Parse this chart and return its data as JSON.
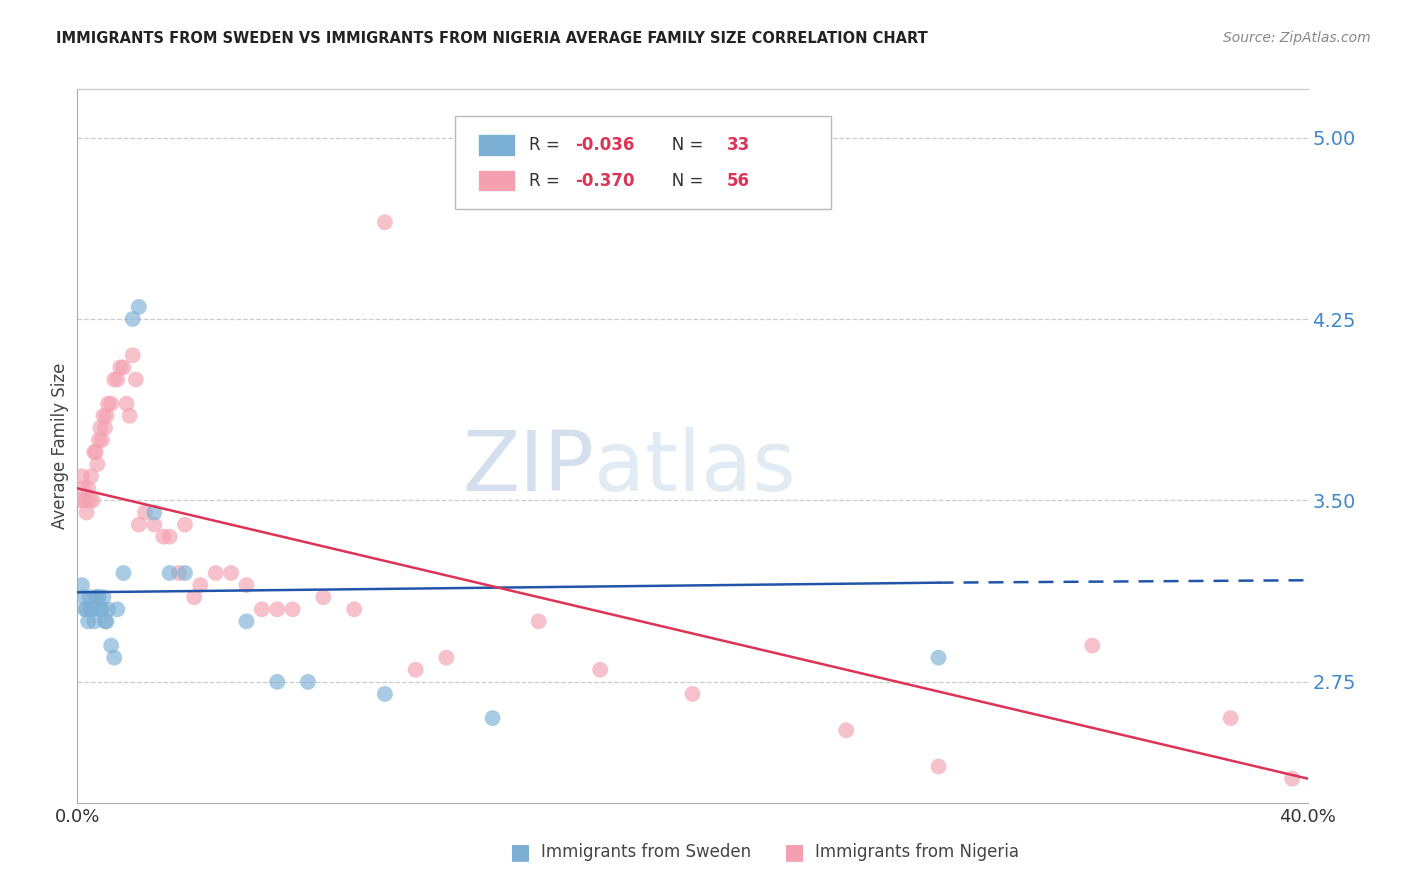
{
  "title": "IMMIGRANTS FROM SWEDEN VS IMMIGRANTS FROM NIGERIA AVERAGE FAMILY SIZE CORRELATION CHART",
  "source": "Source: ZipAtlas.com",
  "ylabel": "Average Family Size",
  "yticks": [
    2.75,
    3.5,
    4.25,
    5.0
  ],
  "xmin": 0.0,
  "xmax": 40.0,
  "ymin": 2.25,
  "ymax": 5.2,
  "watermark_zip": "ZIP",
  "watermark_atlas": "atlas",
  "legend_sweden": "Immigrants from Sweden",
  "legend_nigeria": "Immigrants from Nigeria",
  "sweden_R": "-0.036",
  "sweden_N": "33",
  "nigeria_R": "-0.370",
  "nigeria_N": "56",
  "sweden_color": "#7bafd4",
  "nigeria_color": "#f4a0b0",
  "sweden_line_color": "#2255aa",
  "nigeria_line_color": "#dd3355",
  "background_color": "#ffffff",
  "grid_color": "#cccccc",
  "title_color": "#222222",
  "right_axis_color": "#4488cc",
  "sweden_x": [
    0.15,
    0.2,
    0.25,
    0.3,
    0.35,
    0.4,
    0.45,
    0.5,
    0.55,
    0.6,
    0.65,
    0.7,
    0.75,
    0.8,
    0.85,
    0.9,
    0.95,
    1.0,
    1.1,
    1.2,
    1.3,
    1.5,
    1.8,
    2.0,
    2.5,
    3.0,
    3.5,
    5.5,
    6.5,
    7.5,
    10.0,
    13.5,
    28.0
  ],
  "sweden_y": [
    3.15,
    3.1,
    3.05,
    3.05,
    3.0,
    3.1,
    3.05,
    3.05,
    3.0,
    3.1,
    3.1,
    3.1,
    3.05,
    3.05,
    3.1,
    3.0,
    3.0,
    3.05,
    2.9,
    2.85,
    3.05,
    3.2,
    4.25,
    4.3,
    3.45,
    3.2,
    3.2,
    3.0,
    2.75,
    2.75,
    2.7,
    2.6,
    2.85
  ],
  "nigeria_x": [
    0.1,
    0.15,
    0.2,
    0.25,
    0.3,
    0.35,
    0.4,
    0.45,
    0.5,
    0.55,
    0.6,
    0.65,
    0.7,
    0.75,
    0.8,
    0.85,
    0.9,
    0.95,
    1.0,
    1.1,
    1.2,
    1.3,
    1.4,
    1.5,
    1.6,
    1.7,
    1.8,
    1.9,
    2.0,
    2.2,
    2.5,
    2.8,
    3.0,
    3.3,
    3.5,
    3.8,
    4.0,
    4.5,
    5.0,
    5.5,
    6.0,
    6.5,
    7.0,
    8.0,
    9.0,
    10.0,
    11.0,
    12.0,
    15.0,
    17.0,
    20.0,
    25.0,
    28.0,
    33.0,
    37.5,
    39.5
  ],
  "nigeria_y": [
    3.5,
    3.6,
    3.55,
    3.5,
    3.45,
    3.55,
    3.5,
    3.6,
    3.5,
    3.7,
    3.7,
    3.65,
    3.75,
    3.8,
    3.75,
    3.85,
    3.8,
    3.85,
    3.9,
    3.9,
    4.0,
    4.0,
    4.05,
    4.05,
    3.9,
    3.85,
    4.1,
    4.0,
    3.4,
    3.45,
    3.4,
    3.35,
    3.35,
    3.2,
    3.4,
    3.1,
    3.15,
    3.2,
    3.2,
    3.15,
    3.05,
    3.05,
    3.05,
    3.1,
    3.05,
    4.65,
    2.8,
    2.85,
    3.0,
    2.8,
    2.7,
    2.55,
    2.4,
    2.9,
    2.6,
    2.35
  ],
  "sweden_line_x0": 0.0,
  "sweden_line_y0": 3.12,
  "sweden_line_x1": 28.0,
  "sweden_line_y1": 3.16,
  "sweden_dash_x0": 28.0,
  "sweden_dash_y0": 3.16,
  "sweden_dash_x1": 40.0,
  "sweden_dash_y1": 3.17,
  "nigeria_line_x0": 0.0,
  "nigeria_line_y0": 3.55,
  "nigeria_line_x1": 40.0,
  "nigeria_line_y1": 2.35
}
